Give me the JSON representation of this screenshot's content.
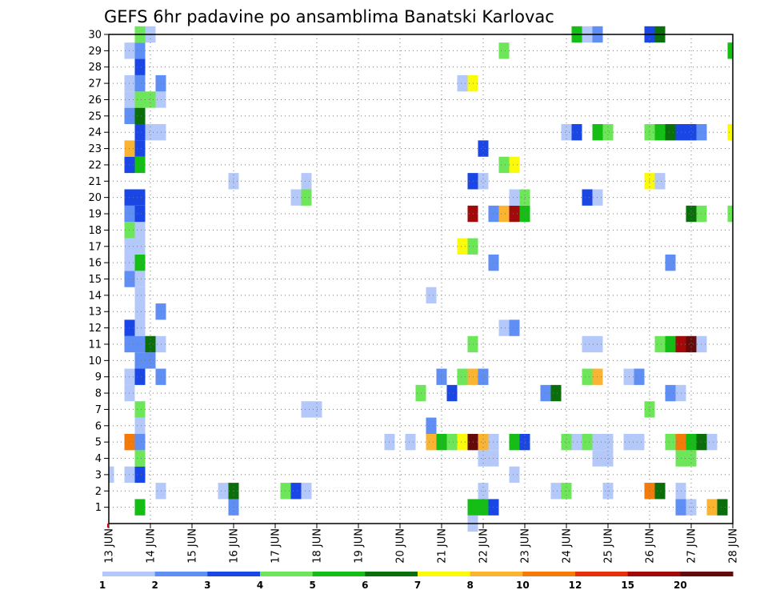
{
  "chart_data": {
    "type": "heatmap",
    "title": "GEFS 6hr padavine po ansamblima Banatski Karlovac",
    "xlabel": "",
    "ylabel": "",
    "x_tick_labels": [
      "13 JUN",
      "14 JUN",
      "15 JUN",
      "16 JUN",
      "17 JUN",
      "18 JUN",
      "19 JUN",
      "20 JUN",
      "21 JUN",
      "22 JUN",
      "23 JUN",
      "24 JUN",
      "25 JUN",
      "26 JUN",
      "27 JUN",
      "28 JUN"
    ],
    "y_tick_labels": [
      "1",
      "2",
      "3",
      "4",
      "5",
      "6",
      "7",
      "8",
      "9",
      "10",
      "11",
      "12",
      "13",
      "14",
      "15",
      "16",
      "17",
      "18",
      "19",
      "20",
      "21",
      "22",
      "23",
      "24",
      "25",
      "26",
      "27",
      "28",
      "29",
      "30"
    ],
    "x_range_days": [
      13,
      28
    ],
    "y_range": [
      0,
      30
    ],
    "x_step_hours": 6,
    "grid": true,
    "colorbar": {
      "position": "bottom",
      "labels": [
        "1",
        "2",
        "3",
        "4",
        "5",
        "6",
        "7",
        "8",
        "10",
        "12",
        "15",
        "20"
      ],
      "colors": [
        "#b4c8fa",
        "#5f8ef4",
        "#1a46e6",
        "#6ee65a",
        "#14be14",
        "#0a6e0a",
        "#fafa0a",
        "#fab432",
        "#f47a0a",
        "#e6320a",
        "#a00a0a",
        "#640a0a"
      ]
    },
    "cells": [
      {
        "day": 13.0,
        "member": 3,
        "bin": 0
      },
      {
        "day": 13.5,
        "member": 3,
        "bin": 0
      },
      {
        "day": 13.5,
        "member": 5,
        "bin": 8
      },
      {
        "day": 13.5,
        "member": 8,
        "bin": 0
      },
      {
        "day": 13.5,
        "member": 9,
        "bin": 0
      },
      {
        "day": 13.5,
        "member": 11,
        "bin": 1
      },
      {
        "day": 13.5,
        "member": 12,
        "bin": 2
      },
      {
        "day": 13.5,
        "member": 15,
        "bin": 1
      },
      {
        "day": 13.5,
        "member": 16,
        "bin": 0
      },
      {
        "day": 13.5,
        "member": 17,
        "bin": 0
      },
      {
        "day": 13.5,
        "member": 18,
        "bin": 3
      },
      {
        "day": 13.5,
        "member": 19,
        "bin": 1
      },
      {
        "day": 13.5,
        "member": 20,
        "bin": 2
      },
      {
        "day": 13.5,
        "member": 22,
        "bin": 2
      },
      {
        "day": 13.5,
        "member": 23,
        "bin": 7
      },
      {
        "day": 13.5,
        "member": 25,
        "bin": 1
      },
      {
        "day": 13.5,
        "member": 26,
        "bin": 0
      },
      {
        "day": 13.5,
        "member": 27,
        "bin": 0
      },
      {
        "day": 13.5,
        "member": 29,
        "bin": 0
      },
      {
        "day": 13.75,
        "member": 1,
        "bin": 4
      },
      {
        "day": 13.75,
        "member": 3,
        "bin": 2
      },
      {
        "day": 13.75,
        "member": 4,
        "bin": 3
      },
      {
        "day": 13.75,
        "member": 5,
        "bin": 1
      },
      {
        "day": 13.75,
        "member": 6,
        "bin": 0
      },
      {
        "day": 13.75,
        "member": 7,
        "bin": 3
      },
      {
        "day": 13.75,
        "member": 9,
        "bin": 2
      },
      {
        "day": 13.75,
        "member": 10,
        "bin": 1
      },
      {
        "day": 13.75,
        "member": 11,
        "bin": 1
      },
      {
        "day": 13.75,
        "member": 12,
        "bin": 0
      },
      {
        "day": 13.75,
        "member": 13,
        "bin": 0
      },
      {
        "day": 13.75,
        "member": 14,
        "bin": 0
      },
      {
        "day": 13.75,
        "member": 15,
        "bin": 0
      },
      {
        "day": 13.75,
        "member": 16,
        "bin": 4
      },
      {
        "day": 13.75,
        "member": 17,
        "bin": 0
      },
      {
        "day": 13.75,
        "member": 18,
        "bin": 0
      },
      {
        "day": 13.75,
        "member": 19,
        "bin": 2
      },
      {
        "day": 13.75,
        "member": 20,
        "bin": 2
      },
      {
        "day": 13.75,
        "member": 22,
        "bin": 4
      },
      {
        "day": 13.75,
        "member": 23,
        "bin": 2
      },
      {
        "day": 13.75,
        "member": 24,
        "bin": 2
      },
      {
        "day": 13.75,
        "member": 25,
        "bin": 5
      },
      {
        "day": 13.75,
        "member": 26,
        "bin": 3
      },
      {
        "day": 13.75,
        "member": 27,
        "bin": 1
      },
      {
        "day": 13.75,
        "member": 28,
        "bin": 2
      },
      {
        "day": 13.75,
        "member": 29,
        "bin": 1
      },
      {
        "day": 13.75,
        "member": 30,
        "bin": 3
      },
      {
        "day": 14.0,
        "member": 10,
        "bin": 1
      },
      {
        "day": 14.0,
        "member": 11,
        "bin": 5
      },
      {
        "day": 14.0,
        "member": 24,
        "bin": 0
      },
      {
        "day": 14.0,
        "member": 26,
        "bin": 3
      },
      {
        "day": 14.0,
        "member": 30,
        "bin": 0
      },
      {
        "day": 14.25,
        "member": 2,
        "bin": 0
      },
      {
        "day": 14.25,
        "member": 9,
        "bin": 1
      },
      {
        "day": 14.25,
        "member": 11,
        "bin": 0
      },
      {
        "day": 14.25,
        "member": 13,
        "bin": 1
      },
      {
        "day": 14.25,
        "member": 24,
        "bin": 0
      },
      {
        "day": 14.25,
        "member": 26,
        "bin": 0
      },
      {
        "day": 14.25,
        "member": 27,
        "bin": 1
      },
      {
        "day": 15.75,
        "member": 2,
        "bin": 0
      },
      {
        "day": 16.0,
        "member": 1,
        "bin": 1
      },
      {
        "day": 16.0,
        "member": 2,
        "bin": 5
      },
      {
        "day": 16.0,
        "member": 21,
        "bin": 0
      },
      {
        "day": 17.25,
        "member": 2,
        "bin": 3
      },
      {
        "day": 17.5,
        "member": 2,
        "bin": 2
      },
      {
        "day": 17.5,
        "member": 20,
        "bin": 0
      },
      {
        "day": 17.75,
        "member": 2,
        "bin": 0
      },
      {
        "day": 17.75,
        "member": 7,
        "bin": 0
      },
      {
        "day": 17.75,
        "member": 20,
        "bin": 3
      },
      {
        "day": 17.75,
        "member": 21,
        "bin": 0
      },
      {
        "day": 18.0,
        "member": 7,
        "bin": 0
      },
      {
        "day": 19.75,
        "member": 5,
        "bin": 0
      },
      {
        "day": 20.25,
        "member": 5,
        "bin": 0
      },
      {
        "day": 20.5,
        "member": 8,
        "bin": 3
      },
      {
        "day": 20.75,
        "member": 5,
        "bin": 7
      },
      {
        "day": 20.75,
        "member": 6,
        "bin": 1
      },
      {
        "day": 20.75,
        "member": 14,
        "bin": 0
      },
      {
        "day": 21.0,
        "member": 5,
        "bin": 4
      },
      {
        "day": 21.0,
        "member": 9,
        "bin": 1
      },
      {
        "day": 21.25,
        "member": 5,
        "bin": 3
      },
      {
        "day": 21.25,
        "member": 8,
        "bin": 2
      },
      {
        "day": 21.5,
        "member": 5,
        "bin": 6
      },
      {
        "day": 21.5,
        "member": 9,
        "bin": 3
      },
      {
        "day": 21.5,
        "member": 17,
        "bin": 6
      },
      {
        "day": 21.5,
        "member": 27,
        "bin": 0
      },
      {
        "day": 21.75,
        "member": 0,
        "bin": 0
      },
      {
        "day": 21.75,
        "member": 1,
        "bin": 4
      },
      {
        "day": 21.75,
        "member": 5,
        "bin": 11
      },
      {
        "day": 21.75,
        "member": 9,
        "bin": 7
      },
      {
        "day": 21.75,
        "member": 11,
        "bin": 3
      },
      {
        "day": 21.75,
        "member": 17,
        "bin": 3
      },
      {
        "day": 21.75,
        "member": 19,
        "bin": 10
      },
      {
        "day": 21.75,
        "member": 21,
        "bin": 2
      },
      {
        "day": 21.75,
        "member": 27,
        "bin": 6
      },
      {
        "day": 22.0,
        "member": 1,
        "bin": 4
      },
      {
        "day": 22.0,
        "member": 2,
        "bin": 0
      },
      {
        "day": 22.0,
        "member": 4,
        "bin": 0
      },
      {
        "day": 22.0,
        "member": 5,
        "bin": 7
      },
      {
        "day": 22.0,
        "member": 9,
        "bin": 1
      },
      {
        "day": 22.0,
        "member": 21,
        "bin": 0
      },
      {
        "day": 22.0,
        "member": 23,
        "bin": 2
      },
      {
        "day": 22.25,
        "member": 1,
        "bin": 2
      },
      {
        "day": 22.25,
        "member": 4,
        "bin": 0
      },
      {
        "day": 22.25,
        "member": 5,
        "bin": 0
      },
      {
        "day": 22.25,
        "member": 16,
        "bin": 1
      },
      {
        "day": 22.25,
        "member": 19,
        "bin": 1
      },
      {
        "day": 22.5,
        "member": 12,
        "bin": 0
      },
      {
        "day": 22.5,
        "member": 19,
        "bin": 7
      },
      {
        "day": 22.5,
        "member": 22,
        "bin": 3
      },
      {
        "day": 22.5,
        "member": 29,
        "bin": 3
      },
      {
        "day": 22.75,
        "member": 3,
        "bin": 0
      },
      {
        "day": 22.75,
        "member": 12,
        "bin": 1
      },
      {
        "day": 22.75,
        "member": 19,
        "bin": 10
      },
      {
        "day": 22.75,
        "member": 20,
        "bin": 0
      },
      {
        "day": 22.75,
        "member": 22,
        "bin": 6
      },
      {
        "day": 22.75,
        "member": 5,
        "bin": 4
      },
      {
        "day": 23.0,
        "member": 5,
        "bin": 2
      },
      {
        "day": 23.0,
        "member": 19,
        "bin": 4
      },
      {
        "day": 23.0,
        "member": 20,
        "bin": 3
      },
      {
        "day": 23.5,
        "member": 8,
        "bin": 1
      },
      {
        "day": 23.75,
        "member": 2,
        "bin": 0
      },
      {
        "day": 23.75,
        "member": 8,
        "bin": 5
      },
      {
        "day": 24.0,
        "member": 2,
        "bin": 3
      },
      {
        "day": 24.0,
        "member": 5,
        "bin": 3
      },
      {
        "day": 24.0,
        "member": 24,
        "bin": 0
      },
      {
        "day": 24.25,
        "member": 5,
        "bin": 0
      },
      {
        "day": 24.25,
        "member": 24,
        "bin": 2
      },
      {
        "day": 24.25,
        "member": 30,
        "bin": 4
      },
      {
        "day": 24.5,
        "member": 5,
        "bin": 3
      },
      {
        "day": 24.5,
        "member": 9,
        "bin": 3
      },
      {
        "day": 24.5,
        "member": 11,
        "bin": 0
      },
      {
        "day": 24.5,
        "member": 20,
        "bin": 2
      },
      {
        "day": 24.5,
        "member": 30,
        "bin": 0
      },
      {
        "day": 24.75,
        "member": 4,
        "bin": 0
      },
      {
        "day": 24.75,
        "member": 5,
        "bin": 0
      },
      {
        "day": 24.75,
        "member": 9,
        "bin": 7
      },
      {
        "day": 24.75,
        "member": 11,
        "bin": 0
      },
      {
        "day": 24.75,
        "member": 20,
        "bin": 0
      },
      {
        "day": 24.75,
        "member": 24,
        "bin": 4
      },
      {
        "day": 24.75,
        "member": 30,
        "bin": 1
      },
      {
        "day": 25.0,
        "member": 2,
        "bin": 0
      },
      {
        "day": 25.0,
        "member": 4,
        "bin": 0
      },
      {
        "day": 25.0,
        "member": 5,
        "bin": 0
      },
      {
        "day": 25.0,
        "member": 24,
        "bin": 3
      },
      {
        "day": 25.5,
        "member": 5,
        "bin": 0
      },
      {
        "day": 25.5,
        "member": 9,
        "bin": 0
      },
      {
        "day": 25.75,
        "member": 5,
        "bin": 0
      },
      {
        "day": 25.75,
        "member": 9,
        "bin": 1
      },
      {
        "day": 26.0,
        "member": 2,
        "bin": 8
      },
      {
        "day": 26.0,
        "member": 7,
        "bin": 3
      },
      {
        "day": 26.0,
        "member": 21,
        "bin": 6
      },
      {
        "day": 26.0,
        "member": 24,
        "bin": 3
      },
      {
        "day": 26.0,
        "member": 30,
        "bin": 2
      },
      {
        "day": 26.25,
        "member": 2,
        "bin": 5
      },
      {
        "day": 26.25,
        "member": 11,
        "bin": 3
      },
      {
        "day": 26.25,
        "member": 21,
        "bin": 0
      },
      {
        "day": 26.25,
        "member": 24,
        "bin": 4
      },
      {
        "day": 26.25,
        "member": 30,
        "bin": 5
      },
      {
        "day": 26.5,
        "member": 5,
        "bin": 3
      },
      {
        "day": 26.5,
        "member": 8,
        "bin": 1
      },
      {
        "day": 26.5,
        "member": 11,
        "bin": 4
      },
      {
        "day": 26.5,
        "member": 16,
        "bin": 1
      },
      {
        "day": 26.5,
        "member": 24,
        "bin": 5
      },
      {
        "day": 26.75,
        "member": 1,
        "bin": 1
      },
      {
        "day": 26.75,
        "member": 2,
        "bin": 0
      },
      {
        "day": 26.75,
        "member": 4,
        "bin": 3
      },
      {
        "day": 26.75,
        "member": 5,
        "bin": 8
      },
      {
        "day": 26.75,
        "member": 8,
        "bin": 0
      },
      {
        "day": 26.75,
        "member": 11,
        "bin": 10
      },
      {
        "day": 26.75,
        "member": 24,
        "bin": 2
      },
      {
        "day": 27.0,
        "member": 1,
        "bin": 0
      },
      {
        "day": 27.0,
        "member": 4,
        "bin": 3
      },
      {
        "day": 27.0,
        "member": 5,
        "bin": 4
      },
      {
        "day": 27.0,
        "member": 11,
        "bin": 11
      },
      {
        "day": 27.0,
        "member": 19,
        "bin": 5
      },
      {
        "day": 27.0,
        "member": 24,
        "bin": 2
      },
      {
        "day": 27.25,
        "member": 5,
        "bin": 5
      },
      {
        "day": 27.25,
        "member": 11,
        "bin": 0
      },
      {
        "day": 27.25,
        "member": 19,
        "bin": 3
      },
      {
        "day": 27.25,
        "member": 24,
        "bin": 1
      },
      {
        "day": 27.5,
        "member": 1,
        "bin": 7
      },
      {
        "day": 27.5,
        "member": 5,
        "bin": 0
      },
      {
        "day": 27.75,
        "member": 1,
        "bin": 5
      },
      {
        "day": 28.0,
        "member": 19,
        "bin": 3
      },
      {
        "day": 28.0,
        "member": 24,
        "bin": 6
      },
      {
        "day": 28.0,
        "member": 29,
        "bin": 4
      }
    ]
  }
}
